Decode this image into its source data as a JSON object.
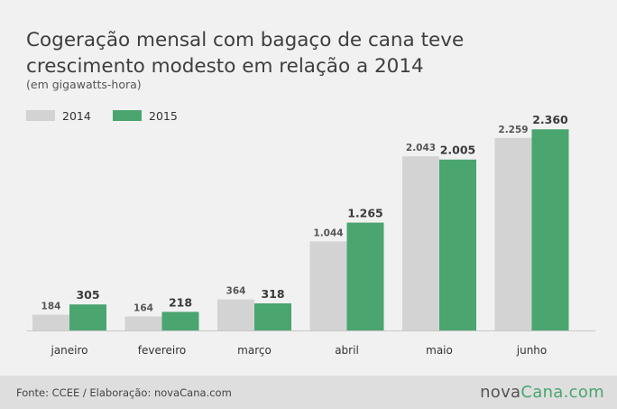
{
  "title_line1": "Cogeração mensal com bagaço de cana teve",
  "title_line2": "crescimento modesto em relação a 2014",
  "subtitle": "(em gigawatts-hora)",
  "legend": [
    {
      "label": "2014",
      "color": "#d3d3d3"
    },
    {
      "label": "2015",
      "color": "#4aa56f"
    }
  ],
  "chart_data": {
    "type": "bar",
    "categories": [
      "janeiro",
      "fevereiro",
      "março",
      "abril",
      "maio",
      "junho"
    ],
    "series": [
      {
        "name": "2014",
        "values": [
          184,
          164,
          364,
          1044,
          2043,
          2259
        ],
        "labels": [
          "184",
          "164",
          "364",
          "1.044",
          "2.043",
          "2.259"
        ],
        "color": "#d3d3d3"
      },
      {
        "name": "2015",
        "values": [
          305,
          218,
          318,
          1265,
          2005,
          2360
        ],
        "labels": [
          "305",
          "218",
          "318",
          "1.265",
          "2.005",
          "2.360"
        ],
        "color": "#4aa56f"
      }
    ],
    "grid": false,
    "legend_position": "top-left"
  },
  "footer": {
    "source": "Fonte: CCEE / Elaboração: novaCana.com",
    "brand_part1": "nova",
    "brand_part2": "Cana.com"
  }
}
